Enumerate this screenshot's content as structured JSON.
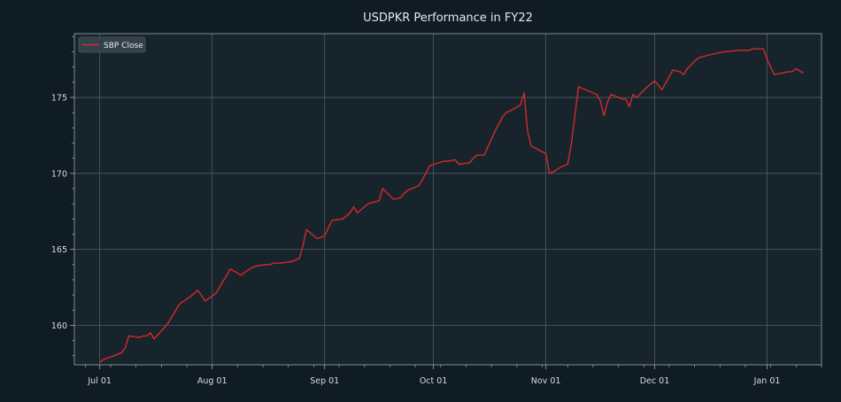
{
  "chart_data": {
    "type": "line",
    "title": "USDPKR Performance in FY22",
    "xlabel": "",
    "ylabel": "",
    "grid": true,
    "legend_position": "top-left",
    "x_ticks": [
      {
        "date": "2021-07-01",
        "label": "Jul 01"
      },
      {
        "date": "2021-08-01",
        "label": "Aug 01"
      },
      {
        "date": "2021-09-01",
        "label": "Sep 01"
      },
      {
        "date": "2021-10-01",
        "label": "Oct 01"
      },
      {
        "date": "2021-11-01",
        "label": "Nov 01"
      },
      {
        "date": "2021-12-01",
        "label": "Dec 01"
      },
      {
        "date": "2022-01-01",
        "label": "Jan 01"
      }
    ],
    "y_ticks": [
      160,
      165,
      170,
      175
    ],
    "xlim": [
      "2021-06-24",
      "2022-01-16"
    ],
    "ylim": [
      157.4,
      179.2
    ],
    "colors": {
      "background": "#0f1c24",
      "plot_background": "#17242c",
      "grid": "#4d5c63",
      "line": "#d42a2a",
      "text": "#e8e8e8"
    },
    "series": [
      {
        "name": "SBP Close",
        "color": "#d42a2a",
        "points": [
          [
            "2021-07-01",
            157.55
          ],
          [
            "2021-07-02",
            157.75
          ],
          [
            "2021-07-05",
            158.0
          ],
          [
            "2021-07-07",
            158.2
          ],
          [
            "2021-07-08",
            158.5
          ],
          [
            "2021-07-09",
            159.3
          ],
          [
            "2021-07-12",
            159.2
          ],
          [
            "2021-07-13",
            159.3
          ],
          [
            "2021-07-14",
            159.3
          ],
          [
            "2021-07-15",
            159.5
          ],
          [
            "2021-07-16",
            159.1
          ],
          [
            "2021-07-19",
            159.9
          ],
          [
            "2021-07-20",
            160.2
          ],
          [
            "2021-07-23",
            161.4
          ],
          [
            "2021-07-26",
            161.9
          ],
          [
            "2021-07-28",
            162.3
          ],
          [
            "2021-07-29",
            162.0
          ],
          [
            "2021-07-30",
            161.6
          ],
          [
            "2021-08-02",
            162.1
          ],
          [
            "2021-08-03",
            162.5
          ],
          [
            "2021-08-05",
            163.3
          ],
          [
            "2021-08-06",
            163.7
          ],
          [
            "2021-08-09",
            163.3
          ],
          [
            "2021-08-10",
            163.5
          ],
          [
            "2021-08-12",
            163.8
          ],
          [
            "2021-08-13",
            163.9
          ],
          [
            "2021-08-16",
            164.0
          ],
          [
            "2021-08-17",
            164.0
          ],
          [
            "2021-08-18",
            164.1
          ],
          [
            "2021-08-20",
            164.1
          ],
          [
            "2021-08-23",
            164.2
          ],
          [
            "2021-08-25",
            164.4
          ],
          [
            "2021-08-26",
            165.2
          ],
          [
            "2021-08-27",
            166.3
          ],
          [
            "2021-08-30",
            165.7
          ],
          [
            "2021-09-01",
            165.9
          ],
          [
            "2021-09-03",
            166.9
          ],
          [
            "2021-09-06",
            167.0
          ],
          [
            "2021-09-07",
            167.2
          ],
          [
            "2021-09-08",
            167.4
          ],
          [
            "2021-09-09",
            167.8
          ],
          [
            "2021-09-10",
            167.4
          ],
          [
            "2021-09-13",
            168.0
          ],
          [
            "2021-09-16",
            168.2
          ],
          [
            "2021-09-17",
            169.0
          ],
          [
            "2021-09-20",
            168.3
          ],
          [
            "2021-09-22",
            168.4
          ],
          [
            "2021-09-23",
            168.7
          ],
          [
            "2021-09-24",
            168.9
          ],
          [
            "2021-09-27",
            169.2
          ],
          [
            "2021-09-28",
            169.6
          ],
          [
            "2021-09-30",
            170.5
          ],
          [
            "2021-10-01",
            170.6
          ],
          [
            "2021-10-04",
            170.8
          ],
          [
            "2021-10-05",
            170.8
          ],
          [
            "2021-10-07",
            170.9
          ],
          [
            "2021-10-08",
            170.6
          ],
          [
            "2021-10-11",
            170.7
          ],
          [
            "2021-10-12",
            171.0
          ],
          [
            "2021-10-13",
            171.2
          ],
          [
            "2021-10-15",
            171.2
          ],
          [
            "2021-10-18",
            172.8
          ],
          [
            "2021-10-20",
            173.7
          ],
          [
            "2021-10-21",
            174.0
          ],
          [
            "2021-10-22",
            174.1
          ],
          [
            "2021-10-25",
            174.5
          ],
          [
            "2021-10-26",
            175.3
          ],
          [
            "2021-10-27",
            172.7
          ],
          [
            "2021-10-28",
            171.8
          ],
          [
            "2021-11-01",
            171.3
          ],
          [
            "2021-11-02",
            170.0
          ],
          [
            "2021-11-03",
            170.1
          ],
          [
            "2021-11-05",
            170.4
          ],
          [
            "2021-11-07",
            170.6
          ],
          [
            "2021-11-08",
            171.9
          ],
          [
            "2021-11-10",
            175.7
          ],
          [
            "2021-11-12",
            175.5
          ],
          [
            "2021-11-15",
            175.2
          ],
          [
            "2021-11-16",
            174.8
          ],
          [
            "2021-11-17",
            173.8
          ],
          [
            "2021-11-18",
            174.7
          ],
          [
            "2021-11-19",
            175.2
          ],
          [
            "2021-11-22",
            174.9
          ],
          [
            "2021-11-23",
            174.9
          ],
          [
            "2021-11-24",
            174.4
          ],
          [
            "2021-11-25",
            175.2
          ],
          [
            "2021-11-26",
            175.0
          ],
          [
            "2021-11-29",
            175.7
          ],
          [
            "2021-12-01",
            176.1
          ],
          [
            "2021-12-02",
            175.8
          ],
          [
            "2021-12-03",
            175.5
          ],
          [
            "2021-12-06",
            176.8
          ],
          [
            "2021-12-08",
            176.7
          ],
          [
            "2021-12-09",
            176.5
          ],
          [
            "2021-12-10",
            176.9
          ],
          [
            "2021-12-13",
            177.6
          ],
          [
            "2021-12-16",
            177.8
          ],
          [
            "2021-12-20",
            178.0
          ],
          [
            "2021-12-24",
            178.1
          ],
          [
            "2021-12-27",
            178.1
          ],
          [
            "2021-12-28",
            178.2
          ],
          [
            "2021-12-30",
            178.2
          ],
          [
            "2021-12-31",
            178.2
          ],
          [
            "2022-01-01",
            177.5
          ],
          [
            "2022-01-03",
            176.5
          ],
          [
            "2022-01-05",
            176.6
          ],
          [
            "2022-01-07",
            176.7
          ],
          [
            "2022-01-08",
            176.7
          ],
          [
            "2022-01-09",
            176.9
          ],
          [
            "2022-01-11",
            176.6
          ]
        ]
      }
    ]
  }
}
